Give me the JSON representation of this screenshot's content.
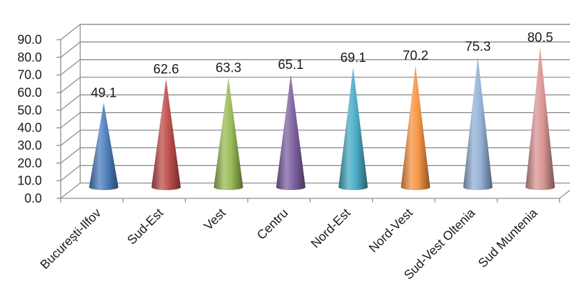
{
  "chart_data": {
    "type": "bar",
    "bar_shape": "cone",
    "view": "3d",
    "categories": [
      "București-Ilfov",
      "Sud-Est",
      "Vest",
      "Centru",
      "Nord-Est",
      "Nord-Vest",
      "Sud-Vest Oltenia",
      "Sud Muntenia"
    ],
    "values": [
      49.1,
      62.6,
      63.3,
      65.1,
      69.1,
      70.2,
      75.3,
      80.5
    ],
    "data_labels": [
      "49.1",
      "62.6",
      "63.3",
      "65.1",
      "69.1",
      "70.2",
      "75.3",
      "80.5"
    ],
    "yticks": [
      "0.0",
      "10.0",
      "20.0",
      "30.0",
      "40.0",
      "50.0",
      "60.0",
      "70.0",
      "80.0",
      "90.0"
    ],
    "ylim": [
      0,
      90
    ],
    "grid": true,
    "legend": "none",
    "colors": [
      "#4f81bd",
      "#c0504d",
      "#9bbb59",
      "#8064a2",
      "#4bacc6",
      "#f79646",
      "#95b3d7",
      "#d99694"
    ]
  }
}
